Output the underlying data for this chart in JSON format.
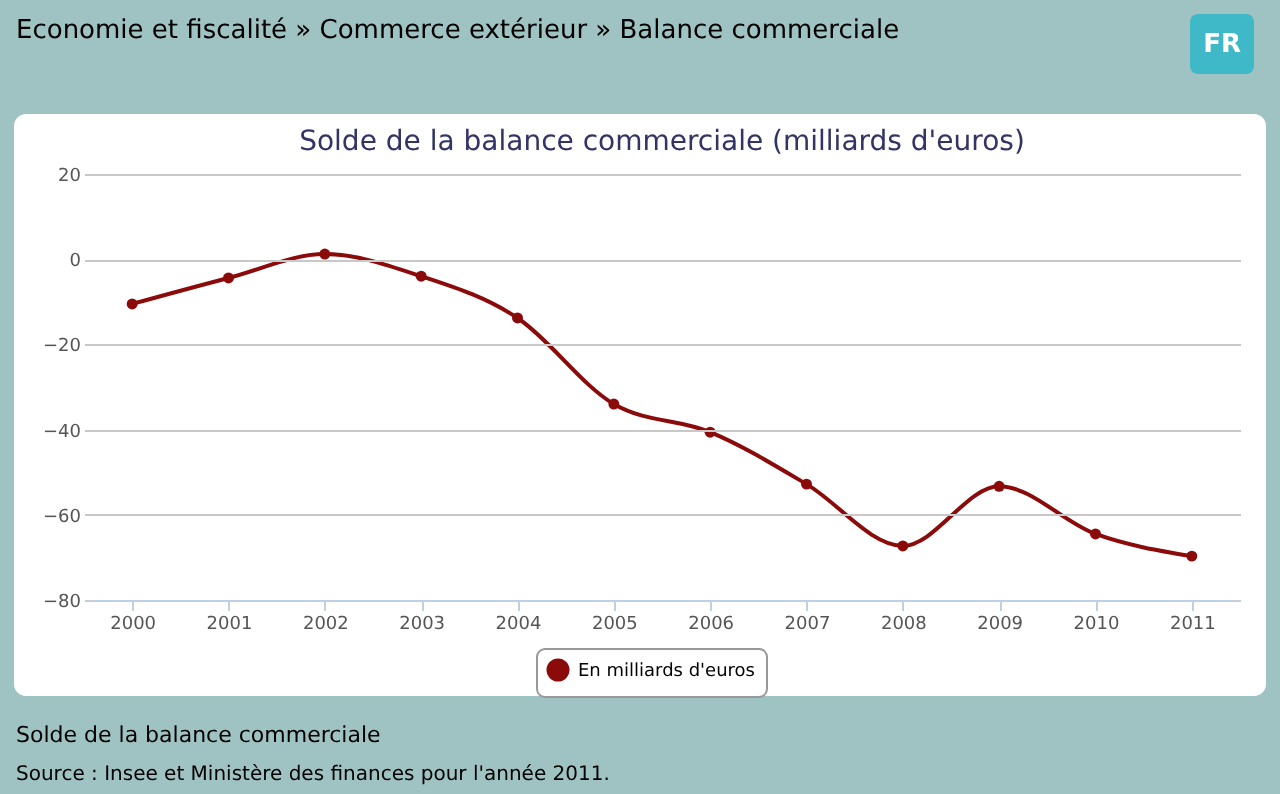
{
  "chart_data": {
    "type": "line",
    "title": "Solde de la balance commerciale (milliards d'euros)",
    "categories": [
      "2000",
      "2001",
      "2002",
      "2003",
      "2004",
      "2005",
      "2006",
      "2007",
      "2008",
      "2009",
      "2010",
      "2011"
    ],
    "series": [
      {
        "name": "En milliards d'euros",
        "color": "#8b0a0a",
        "values": [
          -10.5,
          -4.4,
          1.2,
          -4,
          -13.8,
          -34,
          -40.6,
          -52.8,
          -67.3,
          -53.3,
          -64.5,
          -69.7
        ]
      }
    ],
    "ylim": [
      -80,
      20
    ],
    "yticks": [
      -80,
      -60,
      -40,
      -20,
      0,
      20
    ],
    "grid": "y",
    "legend": "bottom",
    "marker": "circle",
    "line_style": "solid",
    "annotations": [
      "Economie et fiscalité » Commerce extérieur » Balance commerciale",
      "FR",
      "Solde de la balance commerciale",
      "Source : Insee et Ministère des finances pour l'année 2011."
    ]
  }
}
